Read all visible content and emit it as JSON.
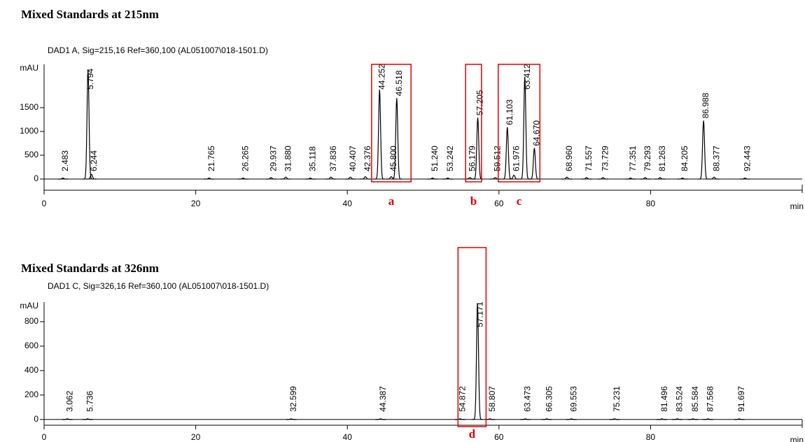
{
  "chart_data": [
    {
      "type": "chromatogram",
      "title": "Mixed Standards at 215nm",
      "subtitle": "DAD1 A, Sig=215,16 Ref=360,100 (AL051007\\018-1501.D)",
      "ylabel": "mAU",
      "xlabel": "min",
      "color": "#000000",
      "xlim": [
        0,
        100
      ],
      "xticks": [
        0,
        20,
        40,
        60,
        80
      ],
      "ylim": [
        -235,
        2410
      ],
      "yticks": [
        0,
        500,
        1000,
        1500
      ],
      "x": [
        2.483,
        5.794,
        6.244,
        21.765,
        26.265,
        29.937,
        31.88,
        35.118,
        37.836,
        40.407,
        42.376,
        44.252,
        45.8,
        46.518,
        51.24,
        53.242,
        56.179,
        57.205,
        59.512,
        61.103,
        61.976,
        63.412,
        64.67,
        68.96,
        71.557,
        73.729,
        77.351,
        79.293,
        81.263,
        84.205,
        86.988,
        88.377,
        92.443
      ],
      "x_labels": [
        "2.483",
        "5.794",
        "6.244",
        "21.765",
        "26.265",
        "29.937",
        "31.880",
        "35.118",
        "37.836",
        "40.407",
        "42.376",
        "44.252",
        "45.800",
        "46.518",
        "51.240",
        "53.242",
        "56.179",
        "57.205",
        "59.512",
        "61.103",
        "61.976",
        "63.412",
        "64.670",
        "68.960",
        "71.557",
        "73.729",
        "77.351",
        "79.293",
        "81.263",
        "84.205",
        "86.988",
        "88.377",
        "92.443"
      ],
      "values": [
        20,
        2300,
        100,
        20,
        20,
        30,
        40,
        20,
        40,
        40,
        50,
        1880,
        50,
        1700,
        20,
        20,
        30,
        1290,
        30,
        1090,
        80,
        2150,
        650,
        40,
        30,
        30,
        20,
        30,
        30,
        20,
        1230,
        40,
        20
      ],
      "annotation_color": "#e00000",
      "annotations": [
        {
          "text": "a",
          "x": [
            43.2,
            48.4
          ]
        },
        {
          "text": "b",
          "x": [
            55.6,
            57.7
          ]
        },
        {
          "text": "c",
          "x": [
            59.9,
            65.4
          ]
        }
      ]
    },
    {
      "type": "chromatogram",
      "title": "Mixed Standards at 326nm",
      "subtitle": "DAD1 C, Sig=326,16 Ref=360,100 (AL051007\\018-1501.D)",
      "ylabel": "mAU",
      "xlabel": "min",
      "color": "#000000",
      "xlim": [
        0,
        100
      ],
      "xticks": [
        0,
        20,
        40,
        60,
        80
      ],
      "ylim": [
        -47,
        960
      ],
      "yticks": [
        0,
        200,
        400,
        600,
        800
      ],
      "x": [
        3.062,
        5.736,
        32.599,
        44.387,
        54.872,
        57.171,
        58.807,
        63.473,
        66.305,
        69.553,
        75.231,
        81.496,
        83.524,
        85.584,
        87.568,
        91.697
      ],
      "x_labels": [
        "3.062",
        "5.736",
        "32.599",
        "44.387",
        "54.872",
        "57.171",
        "58.807",
        "63.473",
        "66.305",
        "69.553",
        "75.231",
        "81.496",
        "83.524",
        "85.584",
        "87.568",
        "91.697"
      ],
      "values": [
        5,
        5,
        5,
        5,
        5,
        950,
        5,
        5,
        5,
        5,
        5,
        5,
        5,
        5,
        5,
        5
      ],
      "annotation_color": "#e00000",
      "annotations": [
        {
          "text": "d",
          "x": [
            54.6,
            58.3
          ]
        }
      ]
    }
  ]
}
